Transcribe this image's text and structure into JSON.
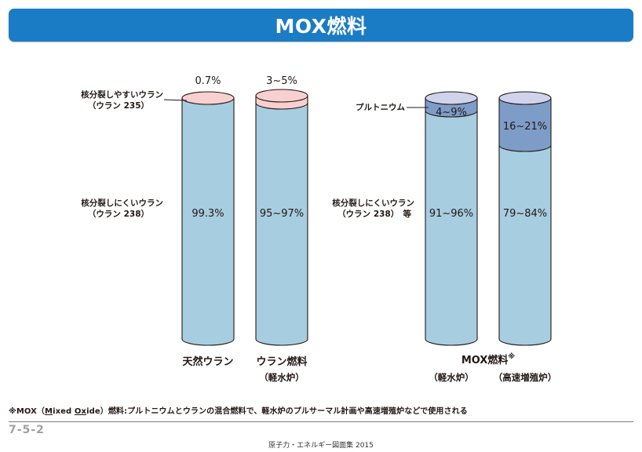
{
  "title": "MOX燃料",
  "colors": {
    "title_bg": "#1a7cc4",
    "fissile_uranium": "#f9cfd0",
    "non_fissile_uranium": "#a7cde0",
    "plutonium": "#7d9dc8",
    "cap": "#cfd3eb"
  },
  "columns": [
    {
      "top_label": "0.7%",
      "middle_label": "99.3%",
      "category": "天然ウラン",
      "sub": "",
      "upper_fraction": 0.007
    },
    {
      "top_label": "3~5%",
      "middle_label": "95~97%",
      "category": "ウラン燃料",
      "sub": "（軽水炉）",
      "upper_fraction": 0.04
    },
    {
      "top_label": "4~9%",
      "middle_label": "91~96%",
      "category": "",
      "sub": "（軽水炉）",
      "upper_fraction": 0.065
    },
    {
      "top_label": "16~21%",
      "middle_label": "79~84%",
      "category": "",
      "sub": "（高速増殖炉）",
      "upper_fraction": 0.185
    }
  ],
  "mox_group_label": "MOX燃料",
  "mox_group_mark": "※",
  "left_labels": {
    "fissile": {
      "line1": "核分裂しやすいウラン",
      "line2": "（ウラン 235）"
    },
    "non_fissile": {
      "line1": "核分裂しにくいウラン",
      "line2": "（ウラン 238）"
    }
  },
  "right_labels": {
    "plutonium": "プルトニウム",
    "non_fissile": {
      "line1": "核分裂しにくいウラン",
      "line2": "（ウラン 238）　等"
    }
  },
  "footnote": {
    "pre": "※MOX（",
    "m": "M",
    "ixed": "ixed ",
    "ox": "Ox",
    "post": "ide）燃料:プルトニウムとウランの混合燃料で、軽水炉のプルサーマル計画や高速増殖炉などで使用される"
  },
  "page_code": "7-5-2",
  "source": "原子力・エネルギー図面集 2015"
}
